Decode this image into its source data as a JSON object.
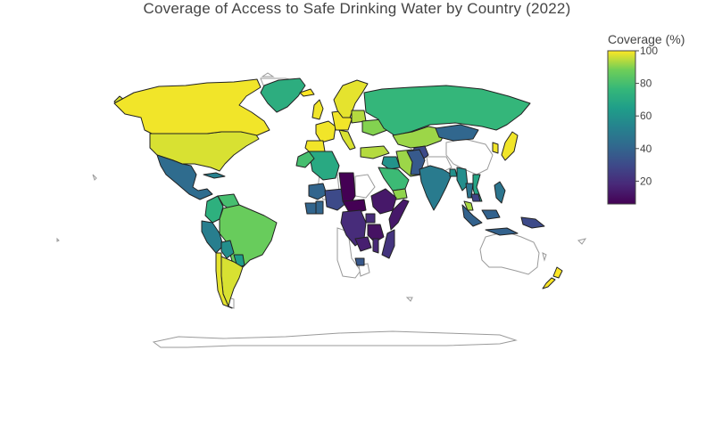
{
  "title": "Coverage of Access to Safe Drinking Water by Country (2022)",
  "colorbar": {
    "title": "Coverage (%)",
    "range": [
      6,
      100
    ],
    "ticks": [
      "20",
      "40",
      "60",
      "80",
      "100"
    ],
    "colorscale": "Viridis"
  },
  "map": {
    "projection": "natural earth",
    "no_data_color": "#ffffff",
    "no_data_border": "#9a9a9a",
    "data_border": "#222222"
  },
  "chart_data": {
    "type": "choropleth",
    "title": "Coverage of Access to Safe Drinking Water by Country (2022)",
    "colorbar_title": "Coverage (%)",
    "zrange": [
      6,
      100
    ],
    "regions": [
      {
        "id": "usa",
        "value": 97
      },
      {
        "id": "canada",
        "value": 99
      },
      {
        "id": "mexico",
        "value": 43
      },
      {
        "id": "cuba",
        "value": 52
      },
      {
        "id": "colombia",
        "value": 73
      },
      {
        "id": "venezuela",
        "value": 80
      },
      {
        "id": "peru",
        "value": 51
      },
      {
        "id": "brazil",
        "value": 87
      },
      {
        "id": "bolivia",
        "value": 58
      },
      {
        "id": "paraguay",
        "value": 64
      },
      {
        "id": "argentina",
        "value": 97
      },
      {
        "id": "chile",
        "value": 98
      },
      {
        "id": "greenland",
        "value": 72
      },
      {
        "id": "iceland",
        "value": 100
      },
      {
        "id": "uk",
        "value": 99
      },
      {
        "id": "france",
        "value": 99
      },
      {
        "id": "spain",
        "value": 99
      },
      {
        "id": "germany",
        "value": 99
      },
      {
        "id": "italy",
        "value": 97
      },
      {
        "id": "scandinavia",
        "value": 98
      },
      {
        "id": "poland",
        "value": 94
      },
      {
        "id": "ukraine",
        "value": 90
      },
      {
        "id": "russia",
        "value": 76
      },
      {
        "id": "kazakhstan",
        "value": 92
      },
      {
        "id": "turkey",
        "value": 94
      },
      {
        "id": "iran",
        "value": 92
      },
      {
        "id": "iraq",
        "value": 60
      },
      {
        "id": "saudi-arabia",
        "value": 78
      },
      {
        "id": "yemen",
        "value": 91
      },
      {
        "id": "afghanistan",
        "value": 30
      },
      {
        "id": "pakistan",
        "value": 36
      },
      {
        "id": "mongolia",
        "value": 41
      },
      {
        "id": "india",
        "value": 50
      },
      {
        "id": "bangladesh",
        "value": 59
      },
      {
        "id": "myanmar",
        "value": 58
      },
      {
        "id": "thailand",
        "value": 47
      },
      {
        "id": "vietnam",
        "value": 68
      },
      {
        "id": "cambodia",
        "value": 28
      },
      {
        "id": "japan",
        "value": 99
      },
      {
        "id": "korea",
        "value": 99
      },
      {
        "id": "philippines",
        "value": 47
      },
      {
        "id": "indonesia",
        "value": 39
      },
      {
        "id": "malaysia",
        "value": 93
      },
      {
        "id": "png",
        "value": 30
      },
      {
        "id": "algeria",
        "value": 70
      },
      {
        "id": "morocco",
        "value": 80
      },
      {
        "id": "mali",
        "value": 40
      },
      {
        "id": "nigeria",
        "value": 30
      },
      {
        "id": "ghana",
        "value": 40
      },
      {
        "id": "cote-divoire",
        "value": 40
      },
      {
        "id": "chad",
        "value": 6
      },
      {
        "id": "central-african-rep",
        "value": 6
      },
      {
        "id": "ethiopia",
        "value": 13
      },
      {
        "id": "somalia",
        "value": 13
      },
      {
        "id": "drc",
        "value": 19
      },
      {
        "id": "uganda",
        "value": 19
      },
      {
        "id": "tanzania",
        "value": 11
      },
      {
        "id": "zambia",
        "value": 15
      },
      {
        "id": "malawi",
        "value": 18
      },
      {
        "id": "angola",
        "value": 35
      },
      {
        "id": "madagascar",
        "value": 22
      },
      {
        "id": "new-zealand",
        "value": 100
      }
    ]
  }
}
